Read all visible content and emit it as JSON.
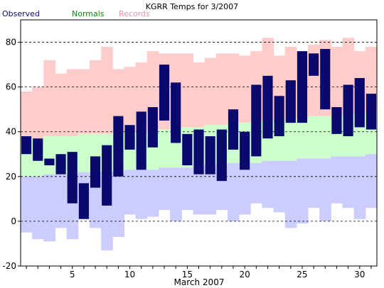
{
  "chart_data": {
    "type": "bar",
    "title": "KGRR Temps for 3/2007",
    "xlabel": "March 2007",
    "ylabel": "",
    "xlim": [
      1,
      31
    ],
    "ylim": [
      -20,
      90
    ],
    "y_ticks": [
      -20,
      0,
      20,
      40,
      60,
      80
    ],
    "x_ticks": [
      5,
      10,
      15,
      20,
      25,
      30
    ],
    "grid": "horizontal dashed at y-ticks",
    "legend": "top-left",
    "legend_entries": [
      "Observed",
      "Normals",
      "Records"
    ],
    "colors": {
      "observed": "#0a0a6e",
      "normals_label": "#0b8a0b",
      "records_label": "#e88fb0",
      "record_band": "#ffcccc",
      "normal_band": "#ccffcc",
      "low_band": "#ccccff"
    },
    "days": [
      1,
      2,
      3,
      4,
      5,
      6,
      7,
      8,
      9,
      10,
      11,
      12,
      13,
      14,
      15,
      16,
      17,
      18,
      19,
      20,
      21,
      22,
      23,
      24,
      25,
      26,
      27,
      28,
      29,
      30,
      31
    ],
    "series": [
      {
        "name": "Observed",
        "high": [
          38,
          37,
          28,
          30,
          31,
          17,
          29,
          34,
          47,
          43,
          49,
          51,
          70,
          62,
          39,
          41,
          38,
          41,
          50,
          40,
          61,
          65,
          56,
          63,
          76,
          75,
          77,
          51,
          61,
          64,
          57
        ],
        "low": [
          30,
          27,
          25,
          21,
          8,
          1,
          15,
          7,
          20,
          32,
          23,
          33,
          45,
          35,
          25,
          21,
          21,
          18,
          32,
          23,
          29,
          37,
          38,
          44,
          44,
          65,
          50,
          39,
          38,
          42,
          41
        ]
      },
      {
        "name": "Normals",
        "high": [
          37,
          37,
          38,
          38,
          38,
          39,
          39,
          39,
          40,
          40,
          40,
          41,
          41,
          42,
          42,
          42,
          43,
          43,
          44,
          44,
          45,
          45,
          45,
          46,
          46,
          47,
          47,
          47,
          48,
          48,
          49
        ],
        "low": [
          20,
          20,
          21,
          21,
          21,
          22,
          22,
          22,
          22,
          23,
          23,
          23,
          24,
          24,
          24,
          25,
          25,
          25,
          26,
          26,
          26,
          27,
          27,
          27,
          28,
          28,
          28,
          29,
          29,
          29,
          30
        ]
      },
      {
        "name": "Records",
        "high": [
          58,
          60,
          72,
          66,
          68,
          68,
          72,
          78,
          68,
          69,
          71,
          76,
          75,
          75,
          75,
          71,
          73,
          75,
          75,
          74,
          76,
          82,
          74,
          78,
          76,
          79,
          81,
          78,
          82,
          76,
          78
        ],
        "low": [
          -5,
          -8,
          -9,
          -3,
          -8,
          1,
          -3,
          -13,
          -7,
          3,
          1,
          2,
          5,
          0,
          5,
          3,
          3,
          5,
          0,
          3,
          8,
          6,
          4,
          -3,
          -1,
          6,
          0,
          8,
          6,
          1,
          6
        ]
      }
    ]
  }
}
